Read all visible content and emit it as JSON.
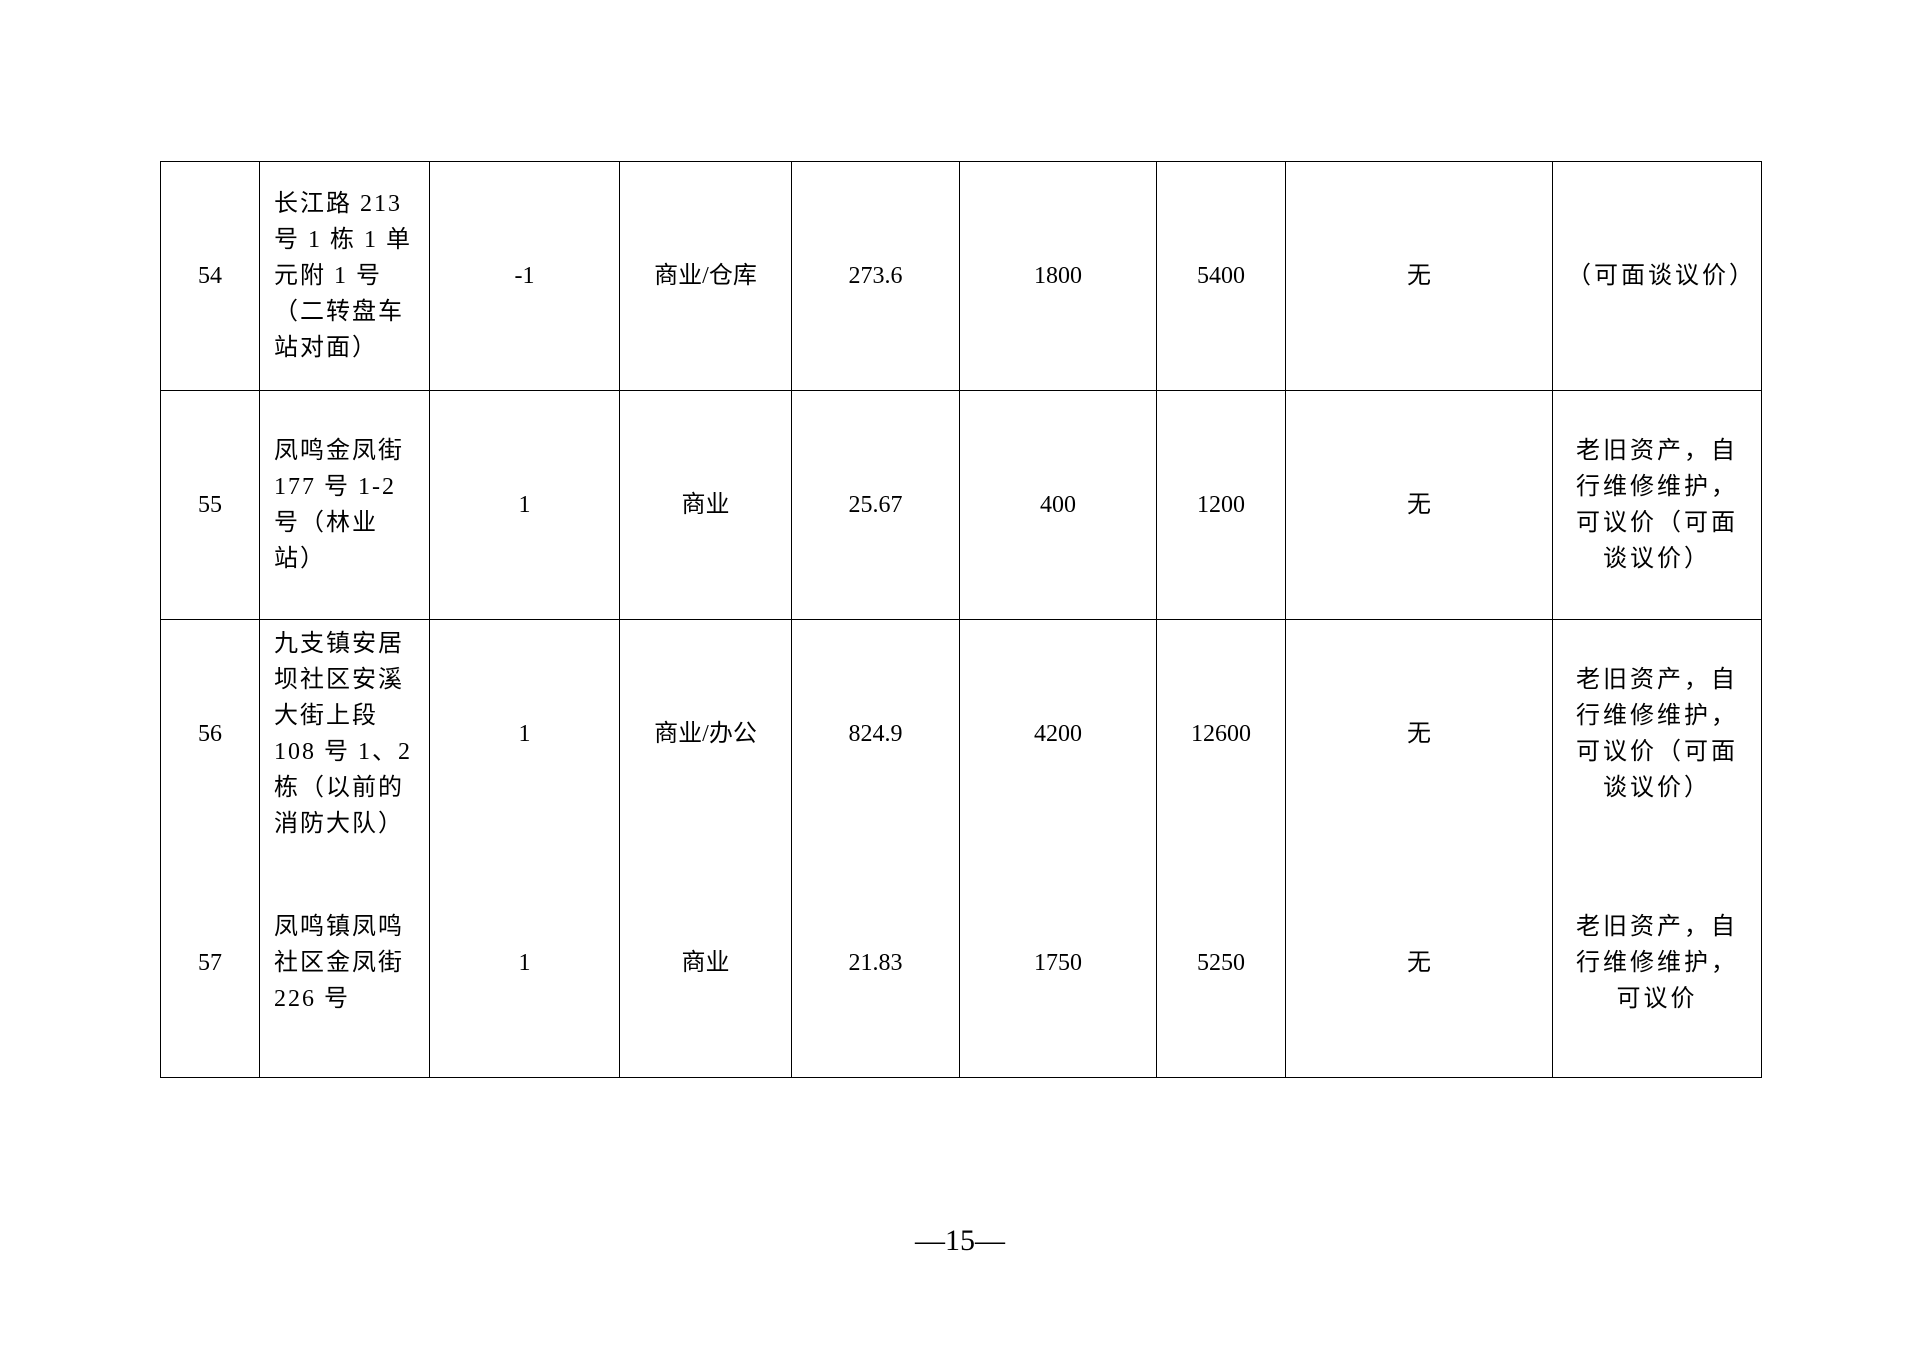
{
  "rows": [
    {
      "no": "54",
      "address": "长江路 213 号 1 栋 1 单元附 1 号（二转盘车站对面）",
      "floor": "-1",
      "use": "商业/仓库",
      "area": "273.6",
      "monthly": "1800",
      "quarterly": "5400",
      "other": "无",
      "note": "（可面谈议价）"
    },
    {
      "no": "55",
      "address": "凤鸣金凤街 177 号 1-2 号（林业站）",
      "floor": "1",
      "use": "商业",
      "area": "25.67",
      "monthly": "400",
      "quarterly": "1200",
      "other": "无",
      "note": "老旧资产，自行维修维护，可议价（可面谈议价）"
    },
    {
      "no": "56",
      "address": "九支镇安居坝社区安溪大街上段 108 号 1、2 栋（以前的消防大队）",
      "floor": "1",
      "use": "商业/办公",
      "area": "824.9",
      "monthly": "4200",
      "quarterly": "12600",
      "other": "无",
      "note": "老旧资产，自行维修维护，可议价（可面谈议价）"
    },
    {
      "no": "57",
      "address": "凤鸣镇凤鸣社区金凤街 226 号",
      "floor": "1",
      "use": "商业",
      "area": "21.83",
      "monthly": "1750",
      "quarterly": "5250",
      "other": "无",
      "note": "老旧资产，自行维修维护，可议价"
    }
  ],
  "page_number": "—15—"
}
